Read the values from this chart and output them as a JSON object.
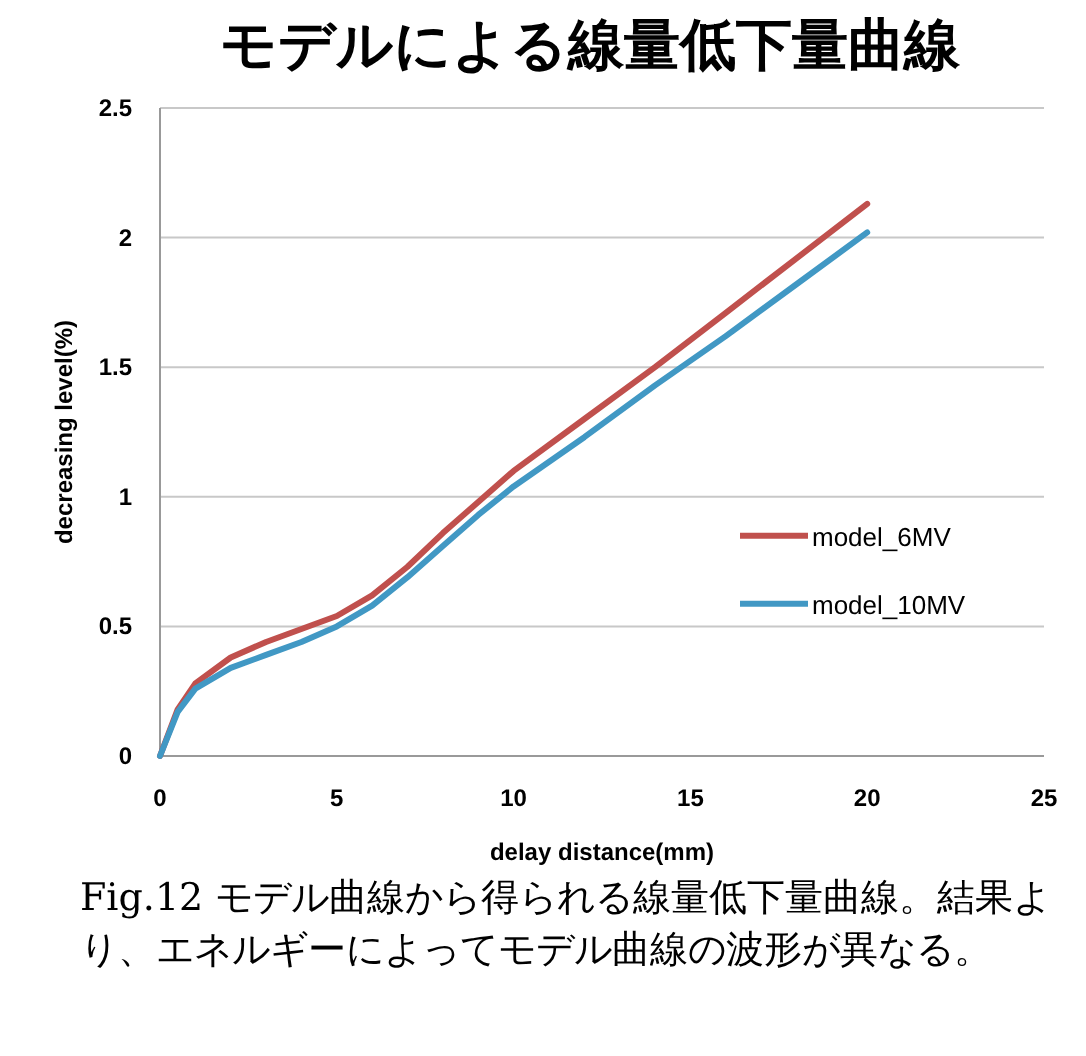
{
  "chart_data": {
    "type": "line",
    "title": "モデルによる線量低下量曲線",
    "xlabel": "delay distance(mm)",
    "ylabel": "decreasing level(%)",
    "annotations": [
      "Fig.12 モデル曲線から得られる線量低下量曲線。結果より、エネルギーによってモデル曲線の波形が異なる。"
    ],
    "x": [
      0,
      0.5,
      1,
      2,
      3,
      4,
      5,
      6,
      7,
      8,
      9,
      10,
      12,
      14,
      16,
      18,
      20
    ],
    "series": [
      {
        "name": "model_6MV",
        "color": "#c0504d",
        "values": [
          0,
          0.18,
          0.28,
          0.38,
          0.44,
          0.49,
          0.54,
          0.62,
          0.73,
          0.86,
          0.98,
          1.1,
          1.3,
          1.5,
          1.71,
          1.92,
          2.13
        ]
      },
      {
        "name": "model_10MV",
        "color": "#4198c4",
        "values": [
          0,
          0.17,
          0.26,
          0.34,
          0.39,
          0.44,
          0.5,
          0.58,
          0.69,
          0.81,
          0.93,
          1.04,
          1.23,
          1.43,
          1.62,
          1.82,
          2.02
        ]
      }
    ],
    "xlim": [
      0,
      25
    ],
    "xticks": [
      0,
      5,
      10,
      15,
      20,
      25
    ],
    "ylim": [
      0,
      2.5
    ],
    "yticks": [
      0,
      0.5,
      1,
      1.5,
      2,
      2.5
    ],
    "grid": "y",
    "legend": "right",
    "marker": "none",
    "line_style": "solid"
  }
}
